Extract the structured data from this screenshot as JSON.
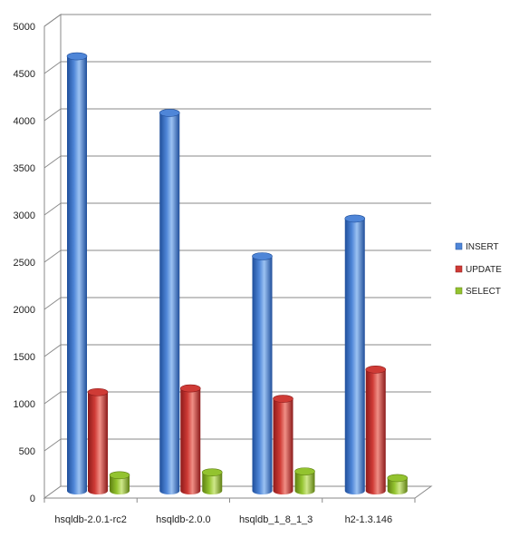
{
  "chart_data": {
    "type": "bar",
    "categories": [
      "hsqldb-2.0.1-rc2",
      "hsqldb-2.0.0",
      "hsqldb_1_8_1_3",
      "h2-1.3.146"
    ],
    "series": [
      {
        "name": "INSERT",
        "values": [
          4620,
          4020,
          2500,
          2900
        ]
      },
      {
        "name": "UPDATE",
        "values": [
          1060,
          1100,
          990,
          1300
        ]
      },
      {
        "name": "SELECT",
        "values": [
          180,
          210,
          220,
          150
        ]
      }
    ],
    "ylim": [
      0,
      5000
    ],
    "yticks": [
      0,
      500,
      1000,
      1500,
      2000,
      2500,
      3000,
      3500,
      4000,
      4500,
      5000
    ],
    "grid": true,
    "legend_position": "right",
    "colors": {
      "INSERT": [
        "#1f4e9a",
        "#4f86d8",
        "#9cc2f2"
      ],
      "UPDATE": [
        "#8c1a1a",
        "#cf3b36",
        "#f08f86"
      ],
      "SELECT": [
        "#5e7f12",
        "#93c32f",
        "#cfe88a"
      ]
    }
  }
}
